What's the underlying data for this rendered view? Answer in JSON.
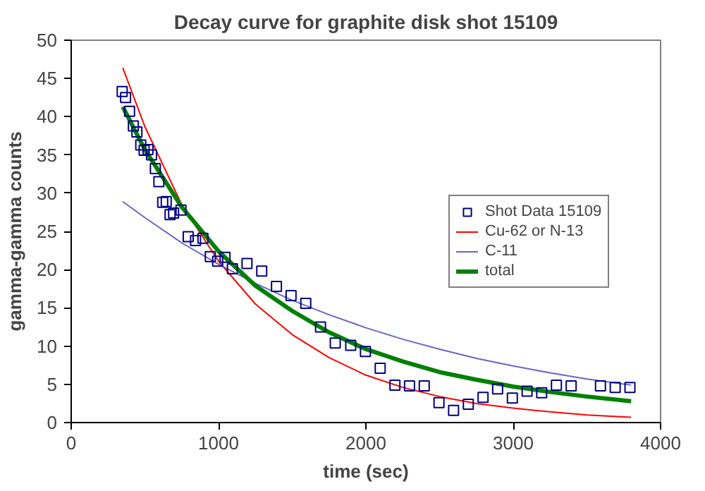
{
  "chart_data": {
    "type": "scatter",
    "title": "Decay curve for graphite disk shot 15109",
    "xlabel": "time (sec)",
    "ylabel": "gamma-gamma counts",
    "xlim": [
      0,
      4000
    ],
    "ylim": [
      0,
      50
    ],
    "xticks": [
      0,
      1000,
      2000,
      3000,
      4000
    ],
    "yticks": [
      0,
      5,
      10,
      15,
      20,
      25,
      30,
      35,
      40,
      45,
      50
    ],
    "grid": false,
    "legend": "right",
    "series": [
      {
        "name": "Shot Data 15109",
        "marker": "square",
        "color": "#000080",
        "x": [
          346,
          369,
          396,
          422,
          446,
          472,
          495,
          521,
          545,
          571,
          595,
          621,
          645,
          671,
          695,
          745,
          794,
          844,
          894,
          944,
          994,
          1044,
          1094,
          1193,
          1293,
          1393,
          1492,
          1592,
          1692,
          1792,
          1897,
          1997,
          2097,
          2197,
          2296,
          2396,
          2496,
          2595,
          2695,
          2795,
          2894,
          2994,
          3094,
          3193,
          3293,
          3393,
          3592,
          3692,
          3792
        ],
        "values": [
          43.3,
          42.5,
          40.7,
          38.8,
          38.0,
          36.3,
          35.6,
          35.7,
          35.0,
          33.2,
          31.5,
          28.8,
          28.9,
          27.2,
          27.4,
          27.8,
          24.3,
          23.8,
          24.1,
          21.7,
          21.1,
          21.6,
          20.1,
          20.8,
          19.8,
          17.8,
          16.6,
          15.6,
          12.5,
          10.4,
          10.1,
          9.3,
          7.1,
          4.9,
          4.8,
          4.8,
          2.6,
          1.6,
          2.4,
          3.3,
          4.4,
          3.2,
          4.1,
          3.9,
          4.9,
          4.8,
          4.8,
          4.6,
          4.6
        ]
      },
      {
        "name": "Cu-62 or N-13",
        "type": "line",
        "color": "#ff0000",
        "x": [
          350,
          500,
          750,
          1000,
          1250,
          1500,
          1750,
          2000,
          2250,
          2500,
          2750,
          3000,
          3250,
          3500,
          3800
        ],
        "values": [
          46.4,
          38.7,
          28.5,
          21.1,
          15.5,
          11.5,
          8.5,
          6.2,
          4.6,
          3.4,
          2.5,
          1.9,
          1.4,
          1.0,
          0.7
        ]
      },
      {
        "name": "C-11",
        "type": "line",
        "color": "#6666cc",
        "x": [
          350,
          500,
          750,
          1000,
          1250,
          1500,
          1750,
          2000,
          2250,
          2500,
          2750,
          3000,
          3250,
          3500,
          3800
        ],
        "values": [
          28.9,
          26.8,
          23.5,
          20.7,
          18.2,
          16.0,
          14.1,
          12.4,
          10.9,
          9.6,
          8.4,
          7.4,
          6.5,
          5.7,
          4.9
        ]
      },
      {
        "name": "total",
        "type": "line",
        "color": "#008000",
        "x": [
          350,
          500,
          750,
          1000,
          1250,
          1500,
          1750,
          2000,
          2250,
          2500,
          2750,
          3000,
          3250,
          3500,
          3800
        ],
        "values": [
          41.3,
          35.7,
          28.2,
          22.4,
          17.9,
          14.6,
          11.8,
          9.6,
          8.0,
          6.6,
          5.6,
          4.7,
          4.0,
          3.4,
          2.8
        ]
      }
    ]
  }
}
